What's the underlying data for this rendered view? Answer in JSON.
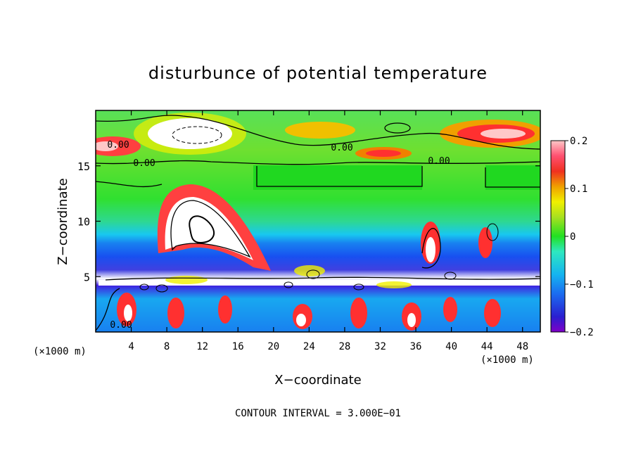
{
  "chart_data": {
    "type": "heatmap",
    "title": "disturbunce of potential temperature",
    "xlabel": "X−coordinate",
    "ylabel": "Z−coordinate",
    "x_unit_left": "(×1000 m)",
    "x_unit_right": "(×1000 m)",
    "footer": "CONTOUR INTERVAL = 3.000E−01",
    "xlim": [
      0,
      50
    ],
    "ylim": [
      0,
      20
    ],
    "x_ticks": [
      "4",
      "8",
      "12",
      "16",
      "20",
      "24",
      "28",
      "32",
      "36",
      "40",
      "44",
      "48"
    ],
    "x_tick_values": [
      4,
      8,
      12,
      16,
      20,
      24,
      28,
      32,
      36,
      40,
      44,
      48
    ],
    "y_ticks": [
      "5",
      "10",
      "15"
    ],
    "y_tick_values": [
      5,
      10,
      15
    ],
    "colorbar": {
      "min": -0.2,
      "max": 0.2,
      "tick_labels": [
        "0.2",
        "0.1",
        "0",
        "−0.1",
        "−0.2"
      ],
      "tick_values": [
        0.2,
        0.1,
        0,
        -0.1,
        -0.2
      ]
    },
    "contour_labels": [
      "0.00",
      "0.00",
      "0.00",
      "0.00",
      "0.00"
    ],
    "grid": false
  }
}
